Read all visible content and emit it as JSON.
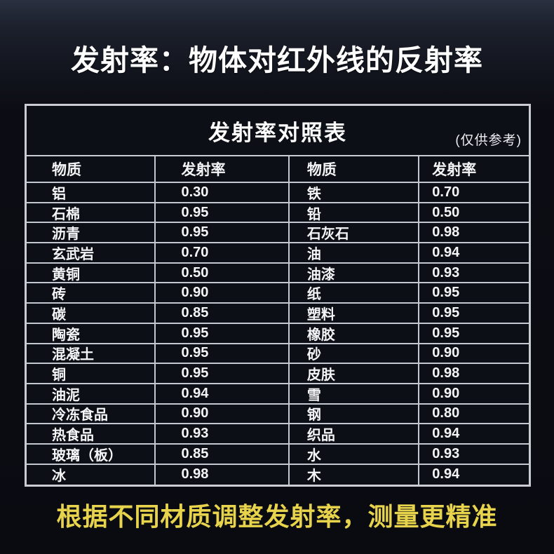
{
  "page": {
    "title": "发射率：物体对红外线的反射率",
    "footer": "根据不同材质调整发射率，测量更精准"
  },
  "table": {
    "title": "发射率对照表",
    "note": "(仅供参考)",
    "headers": [
      "物质",
      "发射率",
      "物质",
      "发射率"
    ],
    "rows": [
      [
        "铝",
        "0.30",
        "铁",
        "0.70"
      ],
      [
        "石棉",
        "0.95",
        "铅",
        "0.50"
      ],
      [
        "沥青",
        "0.95",
        "石灰石",
        "0.98"
      ],
      [
        "玄武岩",
        "0.70",
        "油",
        "0.94"
      ],
      [
        "黄铜",
        "0.50",
        "油漆",
        "0.93"
      ],
      [
        "砖",
        "0.90",
        "纸",
        "0.95"
      ],
      [
        "碳",
        "0.85",
        "塑料",
        "0.95"
      ],
      [
        "陶瓷",
        "0.95",
        "橡胶",
        "0.95"
      ],
      [
        "混凝土",
        "0.95",
        "砂",
        "0.90"
      ],
      [
        "铜",
        "0.95",
        "皮肤",
        "0.98"
      ],
      [
        "油泥",
        "0.94",
        "雪",
        "0.90"
      ],
      [
        "冷冻食品",
        "0.90",
        "钢",
        "0.80"
      ],
      [
        "热食品",
        "0.93",
        "织品",
        "0.94"
      ],
      [
        "玻璃（板）",
        "0.85",
        "水",
        "0.93"
      ],
      [
        "冰",
        "0.98",
        "木",
        "0.94"
      ]
    ]
  },
  "colors": {
    "background": "#0a0b11",
    "table_border": "#c9ccd3",
    "text": "#f4f5f7",
    "accent_yellow": "#e8d44c"
  }
}
